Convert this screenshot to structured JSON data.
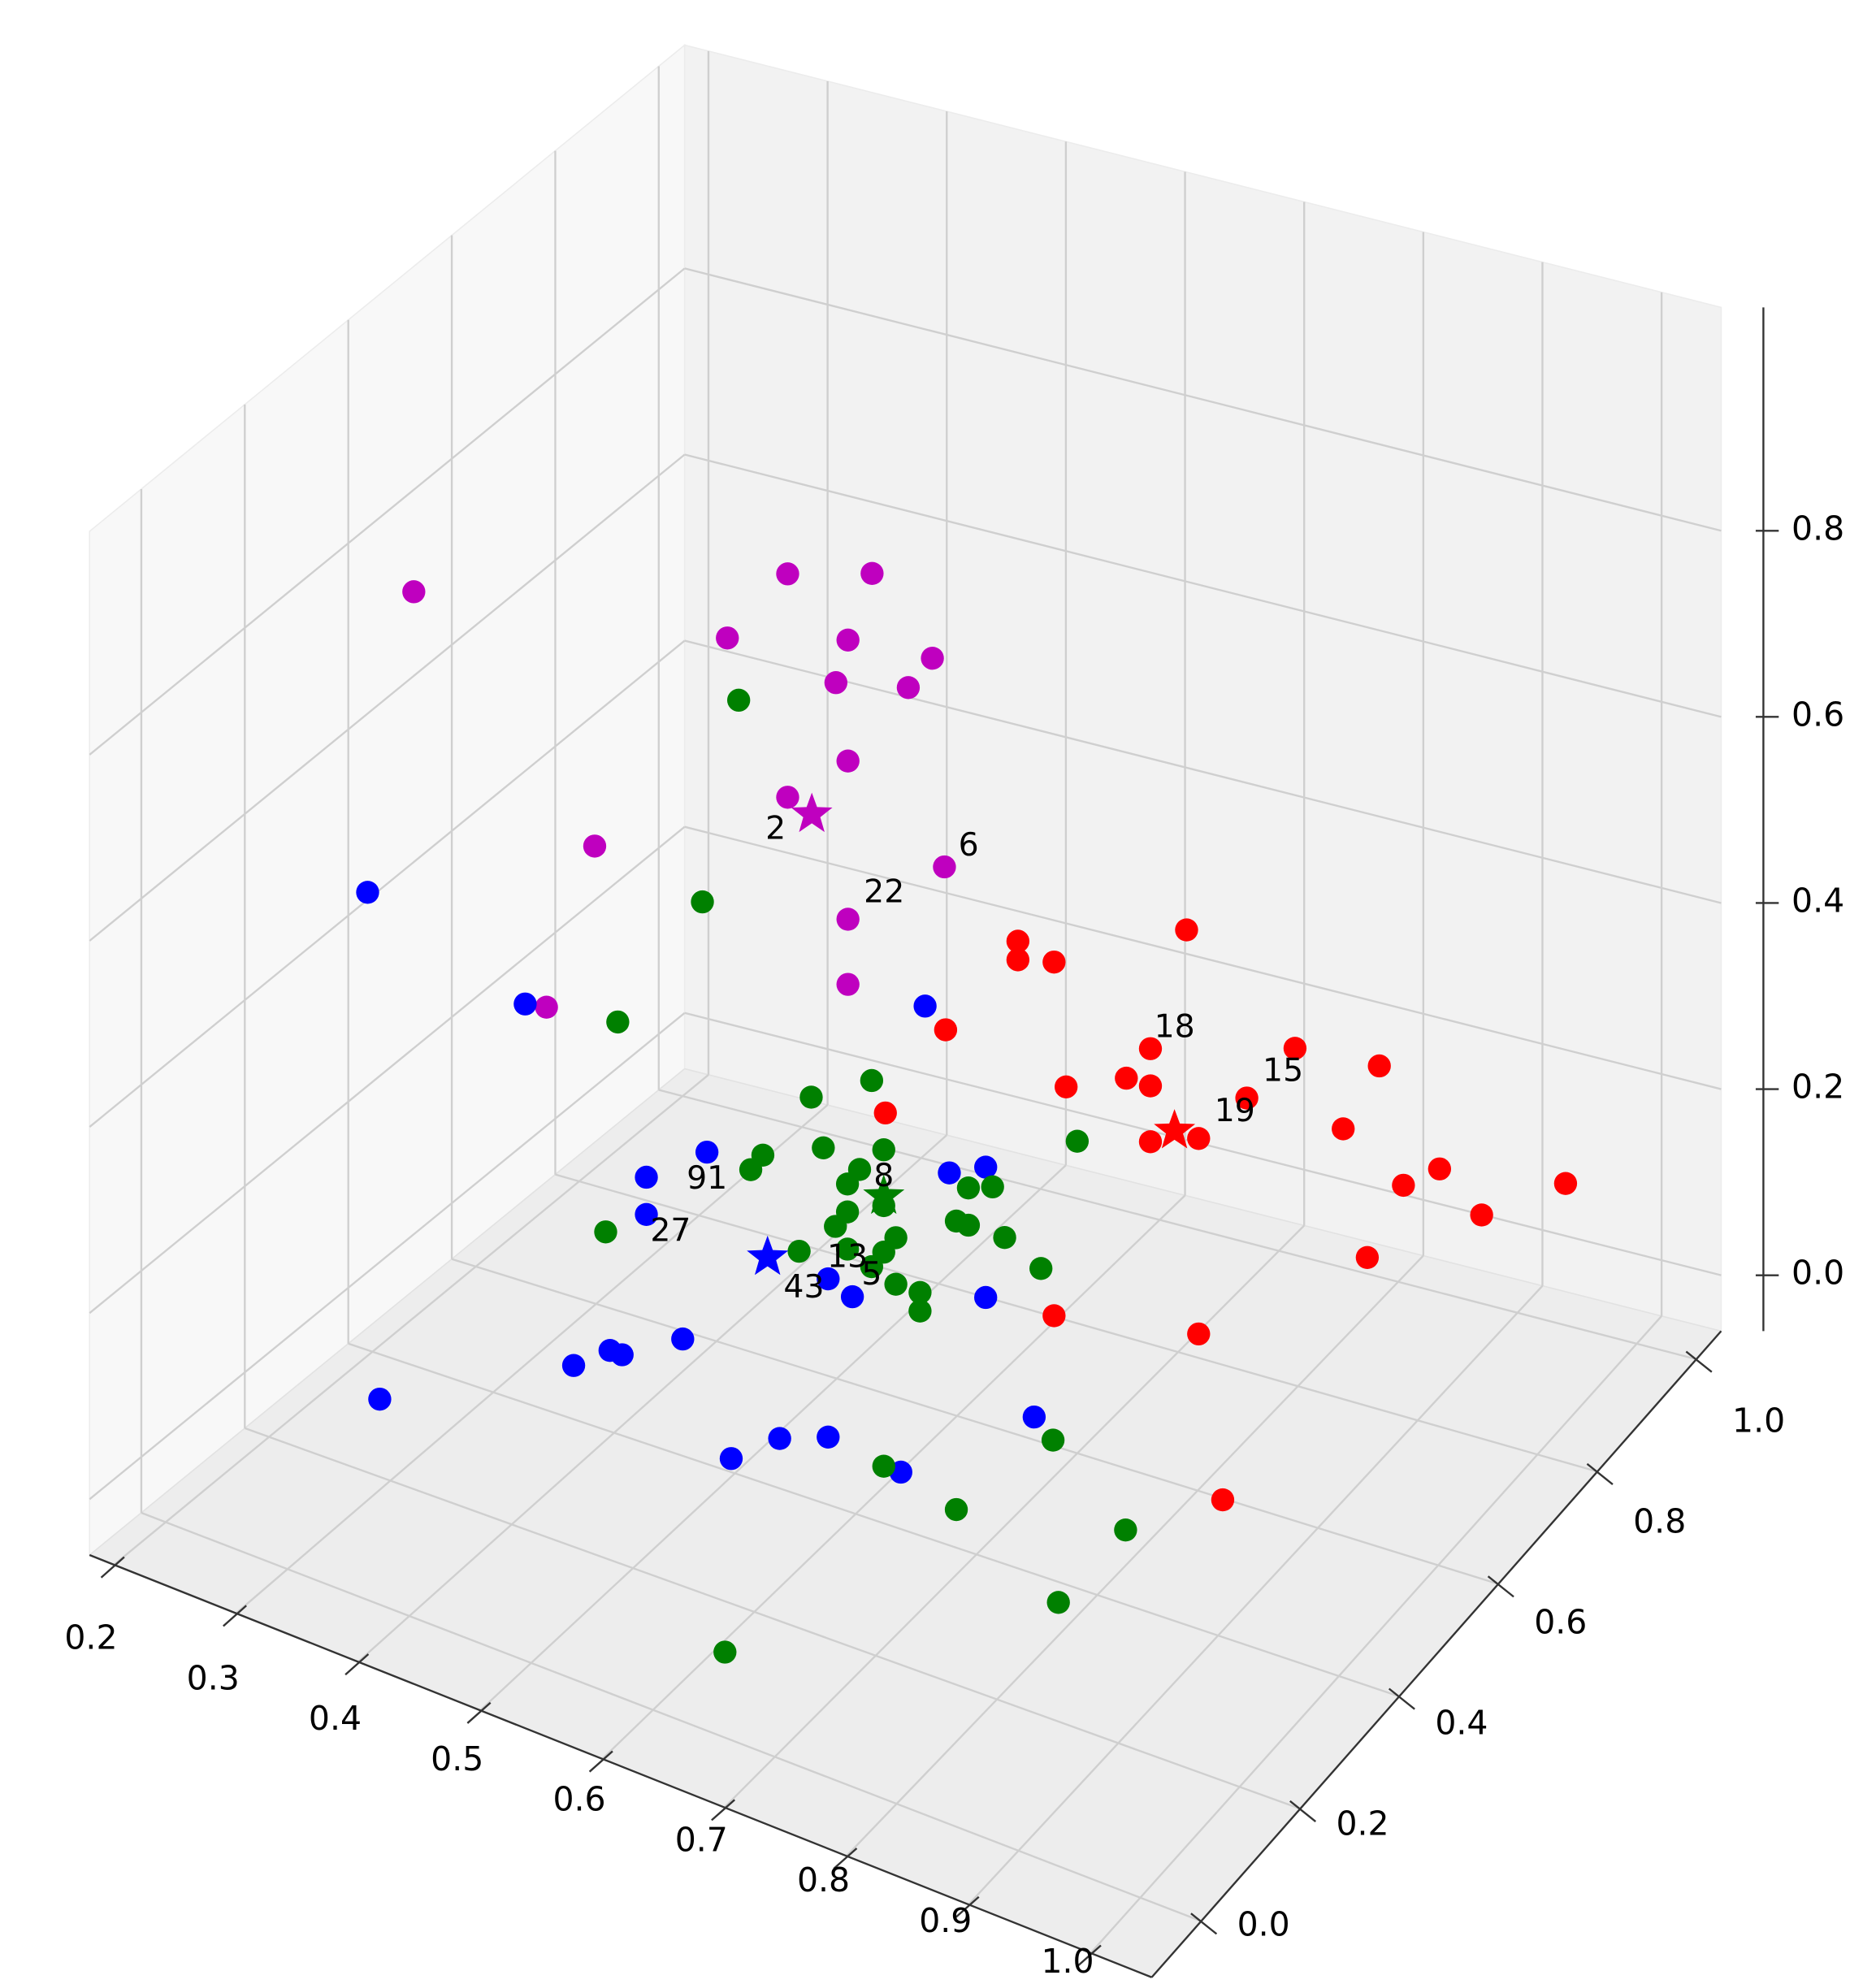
{
  "chart_data": {
    "type": "scatter",
    "xlim": [
      0.18,
      1.05
    ],
    "ylim": [
      -0.1,
      1.05
    ],
    "zlim": [
      -0.06,
      1.04
    ],
    "xticks": [
      0.2,
      0.3,
      0.4,
      0.5,
      0.6,
      0.7,
      0.8,
      0.9,
      {
        "value": 1,
        "label": "1.0"
      }
    ],
    "yticks": [
      {
        "value": 0,
        "label": "0.0"
      },
      0.2,
      0.4,
      0.6,
      0.8,
      {
        "value": 1,
        "label": "1.0"
      }
    ],
    "zticks": [
      {
        "value": 0,
        "label": "0.0"
      },
      0.2,
      0.4,
      0.6,
      0.8
    ],
    "grid": true,
    "series": [
      {
        "color": "#ff0000",
        "marker": "o",
        "x": [
          0.68,
          0.68,
          0.71,
          0.82,
          0.62,
          0.79,
          0.77,
          0.79,
          0.72,
          0.57,
          0.91,
          0.98,
          0.87,
          0.79,
          0.83,
          0.95,
          1.03,
          1,
          1.04,
          0.97,
          0.97,
          0.71,
          0.83,
          0.85
        ],
        "y": [
          0.53,
          0.53,
          0.53,
          0.53,
          0.53,
          0.53,
          0.53,
          0.53,
          0.53,
          0.53,
          0.53,
          0.53,
          0.53,
          0.53,
          0.53,
          0.53,
          0.53,
          0.53,
          0.76,
          0.76,
          0.53,
          0.53,
          0.53,
          0.53
        ],
        "z": [
          0.52,
          0.5,
          0.51,
          0.59,
          0.4,
          0.45,
          0.41,
          0.41,
          0.38,
          0.29,
          0.5,
          0.51,
          0.43,
          0.35,
          0.37,
          0.43,
          0.42,
          0.39,
          0.27,
          0.21,
          0.3,
          0.13,
          0.16,
          -0.01
        ]
      },
      {
        "color": "#bf00bf",
        "marker": "o",
        "x": [
          0.2,
          0.51,
          0.58,
          0.46,
          0.56,
          0.63,
          0.55,
          0.61,
          0.51,
          0.56,
          0.35,
          0.64,
          0.56,
          0.31,
          0.56
        ],
        "y": [
          0.48,
          0.48,
          0.48,
          0.48,
          0.48,
          0.48,
          0.48,
          0.48,
          0.48,
          0.48,
          0.48,
          0.48,
          0.48,
          0.48,
          0.48
        ],
        "z": [
          0.72,
          0.87,
          0.9,
          0.78,
          0.82,
          0.83,
          0.77,
          0.79,
          0.63,
          0.69,
          0.51,
          0.61,
          0.52,
          0.32,
          0.45
        ]
      },
      {
        "color": "#0000ff",
        "marker": "o",
        "x": [
          0.26,
          0.39,
          0.72,
          0.54,
          0.49,
          0.49,
          0.74,
          0.77,
          0.64,
          0.66,
          0.77,
          0.52,
          0.43,
          0.46,
          0.47,
          0.27,
          0.56,
          0.6,
          0.64,
          0.7,
          0.81
        ],
        "y": [
          0.25,
          0.25,
          0.25,
          0.25,
          0.25,
          0.25,
          0.25,
          0.25,
          0.25,
          0.25,
          0.25,
          0.25,
          0.25,
          0.25,
          0.25,
          0.25,
          0.25,
          0.25,
          0.25,
          0.25,
          0.25
        ],
        "z": [
          0.53,
          0.47,
          0.62,
          0.38,
          0.33,
          0.29,
          0.45,
          0.47,
          0.29,
          0.28,
          0.33,
          0.17,
          0.1,
          0.13,
          0.13,
          -0.01,
          0.06,
          0.1,
          0.12,
          0.11,
          0.22
        ]
      },
      {
        "color": "#008000",
        "marker": "o",
        "x": [
          0.52,
          0.49,
          0.42,
          0.63,
          0.58,
          0.54,
          0.53,
          0.59,
          0.64,
          0.61,
          0.62,
          0.61,
          0.6,
          0.64,
          0.71,
          0.73,
          0.41,
          0.7,
          0.71,
          0.74,
          0.65,
          0.64,
          0.61,
          0.57,
          0.63,
          0.65,
          0.67,
          0.67,
          0.77,
          0.8,
          0.64,
          0.78,
          0.7,
          0.84,
          0.83,
          0.63
        ],
        "y": [
          0.36,
          0.36,
          0.36,
          0.36,
          0.36,
          0.36,
          0.36,
          0.36,
          0.36,
          0.36,
          0.36,
          0.36,
          0.36,
          0.36,
          0.36,
          0.36,
          0.36,
          0.36,
          0.36,
          0.36,
          0.36,
          0.36,
          0.36,
          0.36,
          0.36,
          0.36,
          0.36,
          0.36,
          0.36,
          0.36,
          0.36,
          0.36,
          0.36,
          0.36,
          0.25,
          0.07
        ],
        "z": [
          0.8,
          0.57,
          0.41,
          0.44,
          0.4,
          0.32,
          0.3,
          0.35,
          0.37,
          0.32,
          0.34,
          0.29,
          0.27,
          0.31,
          0.36,
          0.37,
          0.18,
          0.32,
          0.32,
          0.32,
          0.28,
          0.26,
          0.25,
          0.23,
          0.24,
          0.23,
          0.23,
          0.21,
          0.3,
          0.45,
          0.03,
          0.12,
          0.01,
          0.05,
          0.03,
          -0.02
        ]
      },
      {
        "marker": "*",
        "colors": [
          "#ff0000",
          "#bf00bf",
          "#0000ff",
          "#008000"
        ],
        "x": [
          0.81,
          0.53,
          0.59,
          0.64
        ],
        "y": [
          0.53,
          0.48,
          0.25,
          0.36
        ],
        "z": [
          0.37,
          0.62,
          0.29,
          0.32
        ]
      }
    ],
    "annotations": [
      {
        "text": "2",
        "x": 0.5,
        "y": 0.48,
        "z": 0.59
      },
      {
        "text": "6",
        "x": 0.66,
        "y": 0.48,
        "z": 0.64
      },
      {
        "text": "22",
        "x": 0.59,
        "y": 0.48,
        "z": 0.56
      },
      {
        "text": "18",
        "x": 0.81,
        "y": 0.53,
        "z": 0.48
      },
      {
        "text": "15",
        "x": 0.9,
        "y": 0.53,
        "z": 0.47
      },
      {
        "text": "19",
        "x": 0.86,
        "y": 0.53,
        "z": 0.41
      },
      {
        "text": "91",
        "x": 0.54,
        "y": 0.25,
        "z": 0.35
      },
      {
        "text": "27",
        "x": 0.51,
        "y": 0.25,
        "z": 0.28
      },
      {
        "text": "43",
        "x": 0.62,
        "y": 0.25,
        "z": 0.27
      },
      {
        "text": "8",
        "x": 0.64,
        "y": 0.36,
        "z": 0.34
      },
      {
        "text": "13",
        "x": 0.61,
        "y": 0.36,
        "z": 0.24
      },
      {
        "text": "5",
        "x": 0.63,
        "y": 0.36,
        "z": 0.23
      }
    ]
  }
}
